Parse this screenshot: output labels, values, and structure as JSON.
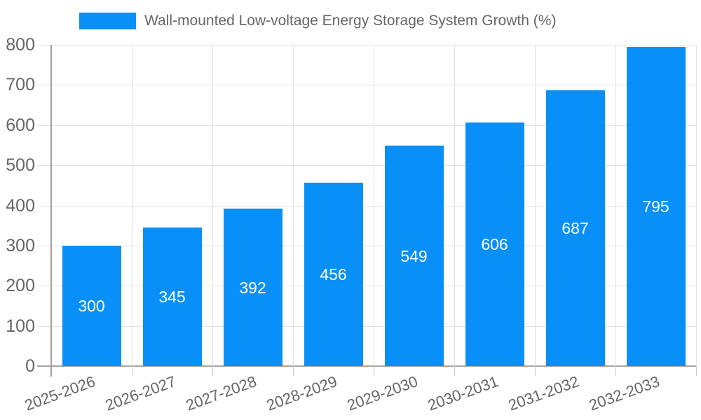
{
  "chart_data": {
    "type": "bar",
    "title": "Wall-mounted Low-voltage Energy Storage System Growth (%)",
    "categories": [
      "2025-2026",
      "2026-2027",
      "2027-2028",
      "2028-2029",
      "2029-2030",
      "2030-2031",
      "2031-2032",
      "2032-2033"
    ],
    "values": [
      300,
      345,
      392,
      456,
      549,
      606,
      687,
      795
    ],
    "xlabel": "",
    "ylabel": "",
    "ylim": [
      0,
      800
    ],
    "ytick_step": 100,
    "ytick_labels": [
      "0",
      "100",
      "200",
      "300",
      "400",
      "500",
      "600",
      "700",
      "800"
    ],
    "grid": true,
    "legend_position": "top",
    "legend_entries": [
      "Wall-mounted Low-voltage Energy Storage System Growth (%)"
    ],
    "bar_color": "#0990f8",
    "value_label_color": "#ffffff",
    "axis_text_color": "#666666",
    "gridline_color": "#e2e2e2",
    "background_color": "#ffffff"
  }
}
